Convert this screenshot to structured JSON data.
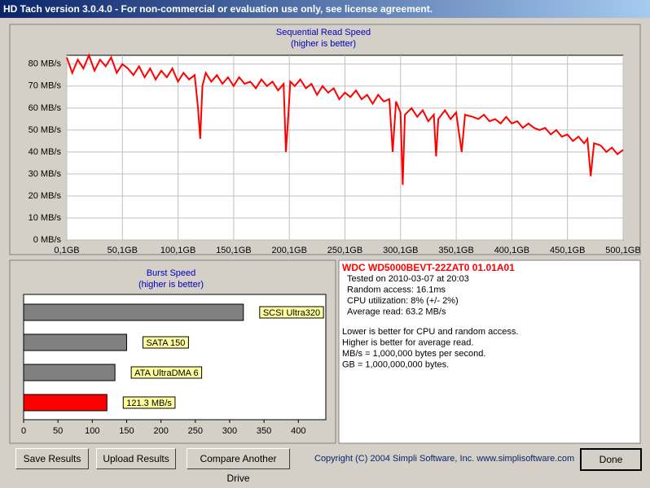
{
  "window_title": "HD Tach version 3.0.4.0  - For non-commercial or evaluation use only, see license agreement.",
  "chart_data": [
    {
      "type": "line",
      "title": "Sequential Read Speed",
      "subtitle": "(higher is better)",
      "color": "#ff0000",
      "x": [
        0.1,
        5,
        10,
        15,
        20,
        25,
        30,
        35,
        40,
        45,
        50,
        55,
        60,
        65,
        70,
        75,
        80,
        85,
        90,
        95,
        100,
        105,
        110,
        115,
        118,
        120,
        122,
        125,
        130,
        135,
        140,
        145,
        150,
        155,
        160,
        165,
        170,
        175,
        180,
        185,
        190,
        195,
        197,
        199,
        201,
        205,
        210,
        215,
        220,
        225,
        230,
        235,
        240,
        245,
        250,
        255,
        260,
        265,
        270,
        275,
        280,
        285,
        290,
        293,
        296,
        300,
        302,
        304,
        310,
        315,
        320,
        325,
        330,
        332,
        334,
        340,
        345,
        350,
        355,
        358,
        365,
        370,
        375,
        380,
        385,
        390,
        395,
        400,
        405,
        410,
        415,
        420,
        425,
        430,
        435,
        440,
        445,
        450,
        455,
        460,
        465,
        468,
        471,
        474,
        480,
        485,
        490,
        495,
        500.1
      ],
      "values": [
        83,
        76,
        82,
        78,
        84,
        77,
        82,
        79,
        83,
        76,
        80,
        78,
        75,
        79,
        74,
        78,
        73,
        77,
        74,
        78,
        72,
        76,
        73,
        75,
        60,
        46,
        70,
        76,
        72,
        75,
        71,
        74,
        70,
        74,
        71,
        72,
        69,
        73,
        70,
        72,
        68,
        71,
        40,
        55,
        72,
        70,
        73,
        69,
        71,
        66,
        70,
        67,
        69,
        64,
        67,
        65,
        68,
        64,
        66,
        62,
        66,
        63,
        64,
        40,
        63,
        58,
        25,
        57,
        60,
        56,
        59,
        54,
        57,
        38,
        55,
        59,
        55,
        58,
        40,
        57,
        56,
        55,
        57,
        54,
        55,
        53,
        56,
        53,
        54,
        51,
        53,
        51,
        50,
        51,
        48,
        50,
        47,
        48,
        45,
        47,
        44,
        46,
        29,
        44,
        43,
        40,
        42,
        39,
        41
      ],
      "xlim": [
        0.1,
        500.1
      ],
      "ylim": [
        0,
        84
      ],
      "xticks": [
        {
          "value": 0.1,
          "label": "0,1GB"
        },
        {
          "value": 50.1,
          "label": "50,1GB"
        },
        {
          "value": 100.1,
          "label": "100,1GB"
        },
        {
          "value": 150.1,
          "label": "150,1GB"
        },
        {
          "value": 200.1,
          "label": "200,1GB"
        },
        {
          "value": 250.1,
          "label": "250,1GB"
        },
        {
          "value": 300.1,
          "label": "300,1GB"
        },
        {
          "value": 350.1,
          "label": "350,1GB"
        },
        {
          "value": 400.1,
          "label": "400,1GB"
        },
        {
          "value": 450.1,
          "label": "450,1GB"
        },
        {
          "value": 500.1,
          "label": "500,1GB"
        }
      ],
      "yticks": [
        {
          "value": 0,
          "label": "0 MB/s"
        },
        {
          "value": 10,
          "label": "10 MB/s"
        },
        {
          "value": 20,
          "label": "20 MB/s"
        },
        {
          "value": 30,
          "label": "30 MB/s"
        },
        {
          "value": 40,
          "label": "40 MB/s"
        },
        {
          "value": 50,
          "label": "50 MB/s"
        },
        {
          "value": 60,
          "label": "60 MB/s"
        },
        {
          "value": 70,
          "label": "70 MB/s"
        },
        {
          "value": 80,
          "label": "80 MB/s"
        }
      ],
      "grid": true
    },
    {
      "type": "hbar",
      "title": "Burst Speed",
      "subtitle": "(higher is better)",
      "bars": [
        {
          "label": "SCSI Ultra320",
          "value": 320,
          "color": "#808080"
        },
        {
          "label": "SATA 150",
          "value": 150,
          "color": "#808080"
        },
        {
          "label": "ATA UltraDMA 6",
          "value": 133,
          "color": "#808080"
        },
        {
          "label": "121.3 MB/s",
          "value": 121.3,
          "color": "#ff0000"
        }
      ],
      "xlim": [
        0,
        440
      ],
      "xticks": [
        0,
        50,
        100,
        150,
        200,
        250,
        300,
        350,
        400
      ]
    }
  ],
  "info": {
    "drive": "WDC WD5000BEVT-22ZAT0 01.01A01",
    "lines": [
      "Tested on 2010-03-07 at 20:03",
      "Random access: 16.1ms",
      "CPU utilization: 8% (+/- 2%)",
      "Average read: 63.2 MB/s"
    ],
    "notes": [
      "Lower is better for CPU and random access.",
      "Higher is better for average read.",
      "MB/s = 1,000,000 bytes per second.",
      "GB = 1,000,000,000 bytes."
    ]
  },
  "buttons": [
    "Save Results",
    "Upload Results",
    "Compare Another Drive",
    "Done"
  ],
  "copyright": "Copyright (C) 2004 Simpli Software, Inc. www.simplisoftware.com"
}
